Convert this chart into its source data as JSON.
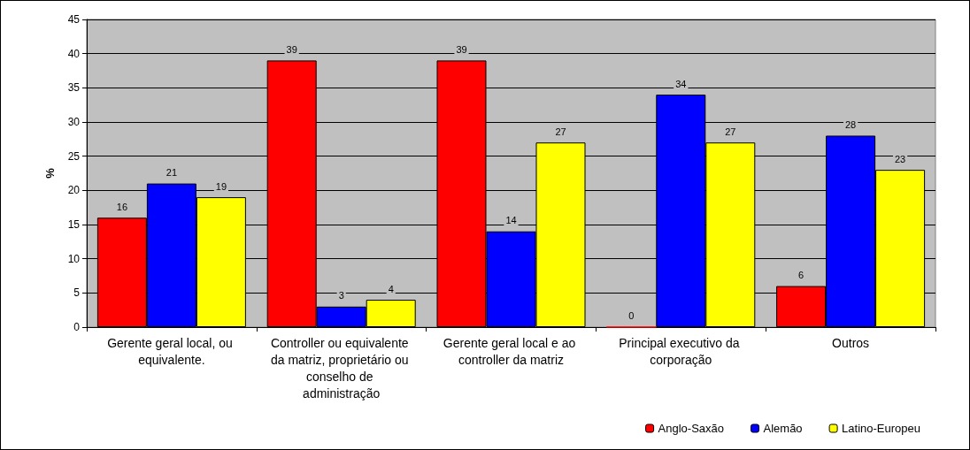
{
  "chart_data": {
    "type": "bar",
    "ylabel": "%",
    "categories": [
      "Gerente geral local, ou equivalente.",
      "Controller ou equivalente da matriz, proprietário ou conselho de administração",
      "Gerente geral local e ao controller da matriz",
      "Principal executivo da corporação",
      "Outros"
    ],
    "series": [
      {
        "name": "Anglo-Saxão",
        "color": "#ff0000",
        "values": [
          16,
          39,
          39,
          0,
          6
        ]
      },
      {
        "name": "Alemão",
        "color": "#0000ff",
        "values": [
          21,
          3,
          14,
          34,
          28
        ]
      },
      {
        "name": "Latino-Europeu",
        "color": "#ffff00",
        "values": [
          19,
          4,
          27,
          27,
          23
        ]
      }
    ],
    "ylim": [
      0,
      45
    ],
    "yticks": [
      0,
      5,
      10,
      15,
      20,
      25,
      30,
      35,
      40,
      45
    ],
    "grid": "y",
    "legend": "bottom right",
    "data_labels": true
  }
}
